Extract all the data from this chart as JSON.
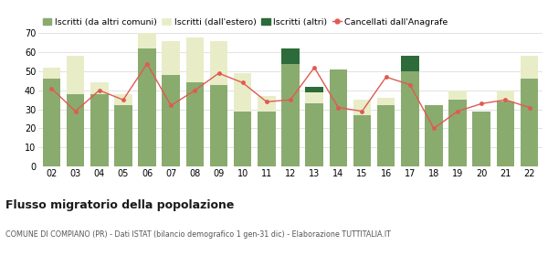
{
  "years": [
    "02",
    "03",
    "04",
    "05",
    "06",
    "07",
    "08",
    "09",
    "10",
    "11",
    "12",
    "13",
    "14",
    "15",
    "16",
    "17",
    "18",
    "19",
    "20",
    "21",
    "22"
  ],
  "iscritti_comuni": [
    46,
    38,
    38,
    32,
    62,
    48,
    44,
    43,
    29,
    29,
    54,
    33,
    51,
    27,
    32,
    50,
    32,
    35,
    29,
    34,
    46
  ],
  "iscritti_estero": [
    6,
    20,
    6,
    6,
    8,
    18,
    24,
    23,
    20,
    8,
    0,
    6,
    0,
    8,
    4,
    0,
    0,
    5,
    0,
    6,
    12
  ],
  "iscritti_altri": [
    0,
    0,
    0,
    0,
    0,
    0,
    0,
    0,
    0,
    0,
    8,
    3,
    0,
    0,
    0,
    8,
    0,
    0,
    0,
    0,
    0
  ],
  "cancellati": [
    41,
    29,
    40,
    35,
    54,
    32,
    40,
    49,
    44,
    34,
    35,
    52,
    31,
    29,
    47,
    43,
    20,
    29,
    33,
    35,
    31
  ],
  "color_comuni": "#8aab6e",
  "color_estero": "#e8edc8",
  "color_altri": "#2d6b3a",
  "color_cancellati": "#e05a52",
  "ylim": [
    0,
    70
  ],
  "yticks": [
    0,
    10,
    20,
    30,
    40,
    50,
    60,
    70
  ],
  "title": "Flusso migratorio della popolazione",
  "subtitle": "COMUNE DI COMPIANO (PR) - Dati ISTAT (bilancio demografico 1 gen-31 dic) - Elaborazione TUTTITALIA.IT",
  "legend_labels": [
    "Iscritti (da altri comuni)",
    "Iscritti (dall'estero)",
    "Iscritti (altri)",
    "Cancellati dall'Anagrafe"
  ],
  "background_color": "#ffffff",
  "grid_color": "#dddddd"
}
